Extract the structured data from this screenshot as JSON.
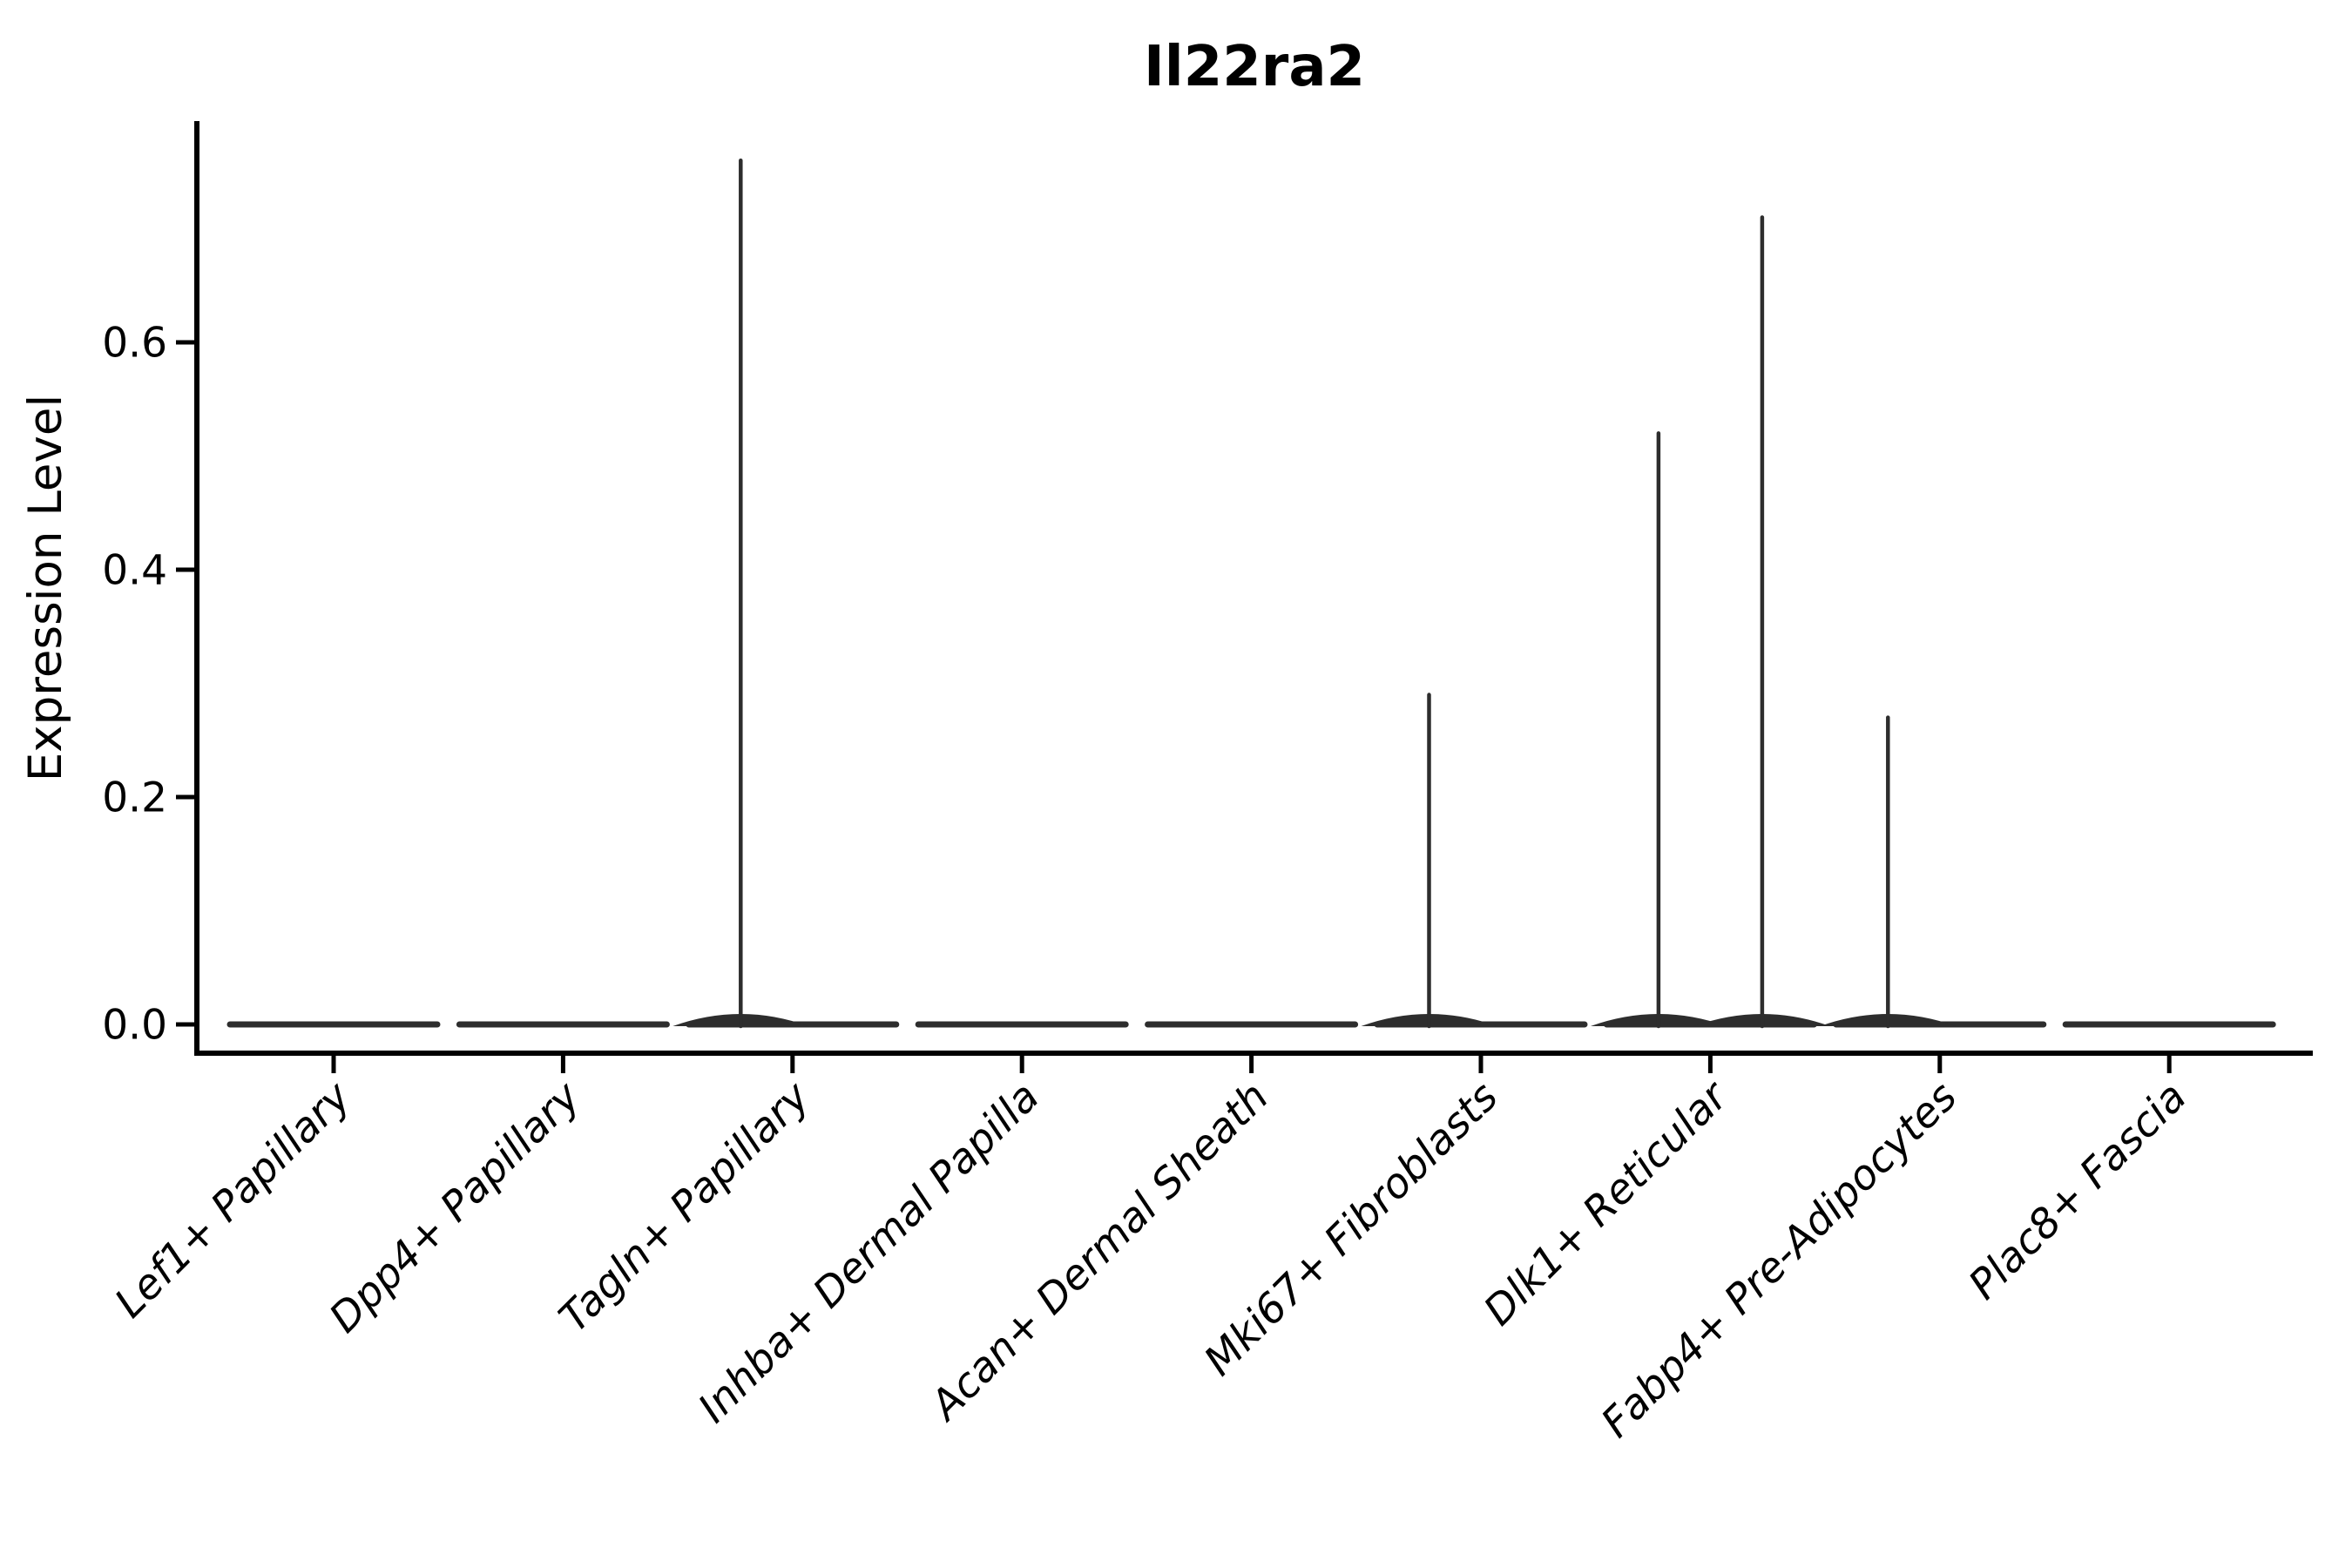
{
  "figure": {
    "background": "#ffffff"
  },
  "chart_data": {
    "type": "violin",
    "title": "Il22ra2",
    "ylabel": "Expression Level",
    "xlabel": "",
    "ytick_labels": [
      "0.0",
      "0.2",
      "0.4",
      "0.6"
    ],
    "ytick_values": [
      0.0,
      0.2,
      0.4,
      0.6
    ],
    "ylim": [
      0,
      0.795
    ],
    "grid": false,
    "legend_position": "none",
    "x_label_rotation_deg": 45,
    "x_labels_italic": true,
    "categories": [
      "Lef1+ Papillary",
      "Dpp4+ Papillary",
      "Tagln+ Papillary",
      "Inhba+ Dermal Papilla",
      "Acan+ Dermal Sheath",
      "Mki67+ Fibroblasts",
      "Dlk1+ Reticular",
      "Fabp4+ Pre-Adipocytes",
      "Plac8+ Fascia"
    ],
    "violins": [
      {
        "category": "Lef1+ Papillary",
        "base_value": 0,
        "spikes": []
      },
      {
        "category": "Dpp4+ Papillary",
        "base_value": 0,
        "spikes": []
      },
      {
        "category": "Tagln+ Papillary",
        "base_value": 0,
        "spikes": [
          {
            "side": "left",
            "max": 0.76
          }
        ]
      },
      {
        "category": "Inhba+ Dermal Papilla",
        "base_value": 0,
        "spikes": []
      },
      {
        "category": "Acan+ Dermal Sheath",
        "base_value": 0,
        "spikes": []
      },
      {
        "category": "Mki67+ Fibroblasts",
        "base_value": 0,
        "spikes": [
          {
            "side": "left",
            "max": 0.29
          }
        ]
      },
      {
        "category": "Dlk1+ Reticular",
        "base_value": 0,
        "spikes": [
          {
            "side": "left",
            "max": 0.52
          },
          {
            "side": "right",
            "max": 0.71
          }
        ]
      },
      {
        "category": "Fabp4+ Pre-Adipocytes",
        "base_value": 0,
        "spikes": [
          {
            "side": "left",
            "max": 0.27
          }
        ]
      },
      {
        "category": "Plac8+ Fascia",
        "base_value": 0,
        "spikes": []
      }
    ],
    "colors": {
      "violin": "#2d2d2d",
      "axis": "#000000",
      "text": "#000000"
    }
  }
}
